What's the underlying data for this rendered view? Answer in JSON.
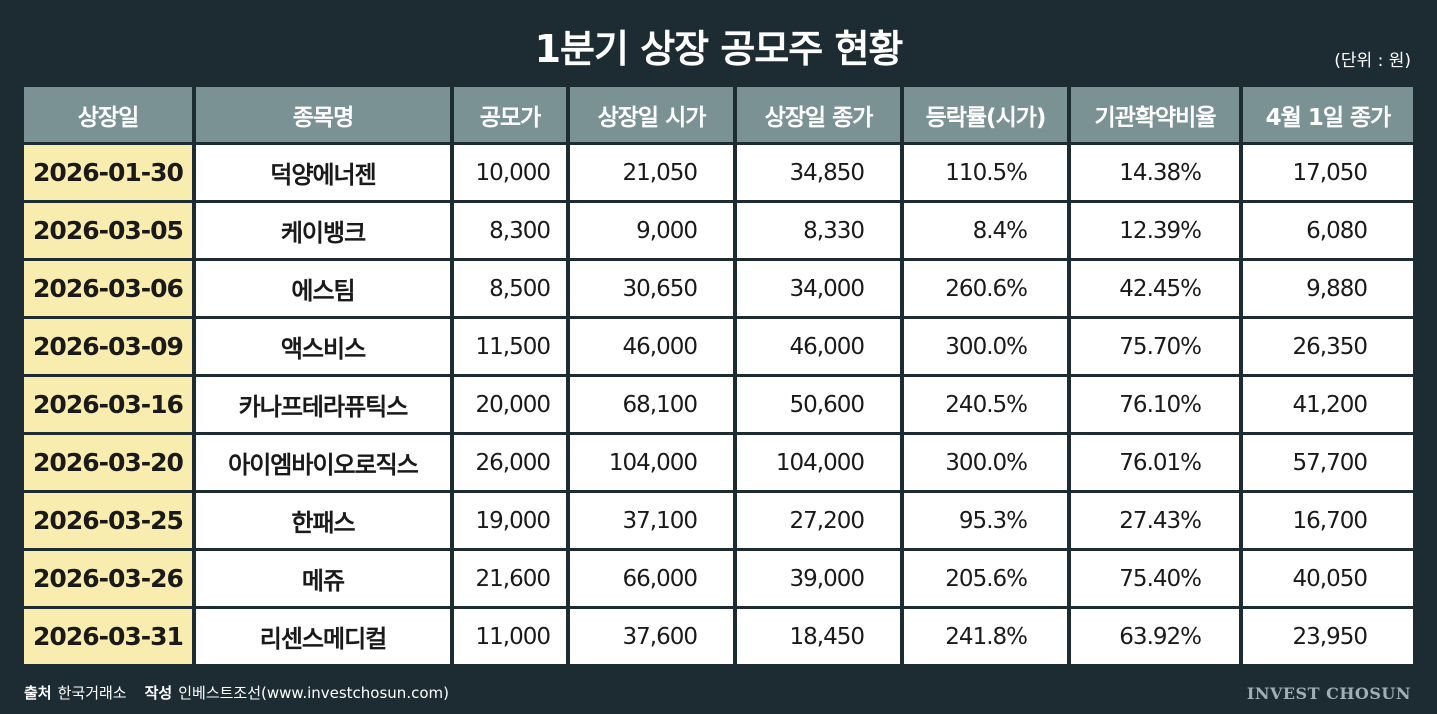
{
  "title": "1분기 상장 공모주 현황",
  "unit": "(단위 : 원)",
  "headers": [
    "상장일",
    "종목명",
    "공모가",
    "상장일 시가",
    "상장일 종가",
    "등락률(시가)",
    "기관확약비율",
    "4월 1일 종가"
  ],
  "rows": [
    [
      "2026-01-30",
      "덕양에너젠",
      "10,000",
      "21,050",
      "34,850",
      "110.5%",
      "14.38%",
      "17,050"
    ],
    [
      "2026-03-05",
      "케이뱅크",
      "8,300",
      "9,000",
      "8,330",
      "8.4%",
      "12.39%",
      "6,080"
    ],
    [
      "2026-03-06",
      "에스팀",
      "8,500",
      "30,650",
      "34,000",
      "260.6%",
      "42.45%",
      "9,880"
    ],
    [
      "2026-03-09",
      "액스비스",
      "11,500",
      "46,000",
      "46,000",
      "300.0%",
      "75.70%",
      "26,350"
    ],
    [
      "2026-03-16",
      "카나프테라퓨틱스",
      "20,000",
      "68,100",
      "50,600",
      "240.5%",
      "76.10%",
      "41,200"
    ],
    [
      "2026-03-20",
      "아이엠바이오로직스",
      "26,000",
      "104,000",
      "104,000",
      "300.0%",
      "76.01%",
      "57,700"
    ],
    [
      "2026-03-25",
      "한패스",
      "19,000",
      "37,100",
      "27,200",
      "95.3%",
      "27.43%",
      "16,700"
    ],
    [
      "2026-03-26",
      "메쥬",
      "21,600",
      "66,000",
      "39,000",
      "205.6%",
      "75.40%",
      "40,050"
    ],
    [
      "2026-03-31",
      "리센스메디컬",
      "11,000",
      "37,600",
      "18,450",
      "241.8%",
      "63.92%",
      "23,950"
    ]
  ],
  "footer": {
    "source_label": "출처",
    "source": "한국거래소",
    "author_label": "작성",
    "author": "인베스트조선(www.investchosun.com)"
  },
  "brand": "INVEST CHOSUN",
  "colors": {
    "background": "#1d2b32",
    "header": "#7b9295",
    "date_cell": "#f8ecae",
    "cell": "#ffffff"
  }
}
